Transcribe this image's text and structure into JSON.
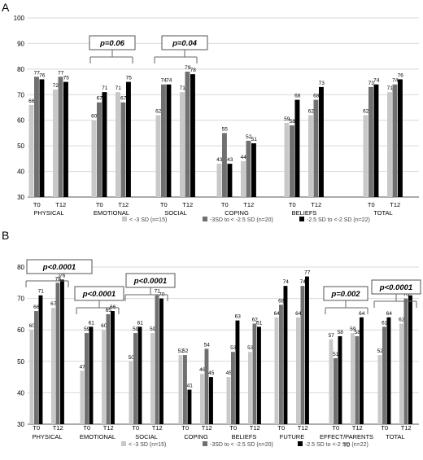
{
  "colors": {
    "series": [
      "#c8c8c8",
      "#707070",
      "#000000"
    ],
    "grid": "#d9d9d9",
    "axis": "#595959",
    "text": "#000000"
  },
  "chart_data": [
    {
      "type": "bar",
      "panel_label": "A",
      "ylim": [
        30,
        100
      ],
      "yticks": [
        30,
        40,
        50,
        60,
        70,
        80,
        90,
        100
      ],
      "grid": true,
      "legend_position": "bottom",
      "legend": [
        "< -3 SD (n=15)",
        "-3SD to < -2.5 SD (n=20)",
        "-2.5 SD to <-2 SD (n=22)"
      ],
      "categories": [
        "T0",
        "T12",
        "T0",
        "T12",
        "T0",
        "T12",
        "T0",
        "T12",
        "T0",
        "T12",
        "T0",
        "T12"
      ],
      "groups": [
        "PHYSICAL",
        "EMOTIONAL",
        "SOCIAL",
        "COPING",
        "BELIEFS",
        "TOTAL"
      ],
      "series": [
        {
          "name": "< -3 SD (n=15)",
          "values": [
            66,
            72,
            60,
            71,
            62,
            71,
            43,
            44,
            59,
            62,
            62,
            71
          ]
        },
        {
          "name": "-3SD to < -2.5 SD (n=20)",
          "values": [
            77,
            77,
            67,
            67,
            74,
            79,
            55,
            52,
            58,
            68,
            73,
            74
          ]
        },
        {
          "name": "-2.5 SD to <-2 SD (n=22)",
          "values": [
            76,
            75,
            71,
            75,
            74,
            78,
            43,
            51,
            68,
            73,
            74,
            76
          ]
        }
      ],
      "annotations": [
        {
          "text": "p=0.06",
          "groups": [
            "EMOTIONAL"
          ]
        },
        {
          "text": "p=0.04",
          "groups": [
            "SOCIAL"
          ]
        }
      ]
    },
    {
      "type": "bar",
      "panel_label": "B",
      "ylim": [
        30,
        80
      ],
      "yticks": [
        30,
        40,
        50,
        60,
        70,
        80
      ],
      "grid": true,
      "legend_position": "bottom",
      "legend": [
        "< -3 SD (n=15)",
        "-3SD to < -2.5 SD (n=20)",
        "-2.5 SD to <-2 SD (n=22)"
      ],
      "categories": [
        "T0",
        "T12",
        "T0",
        "T12",
        "T0",
        "T12",
        "T0",
        "T12",
        "T0",
        "T12",
        "T0",
        "T12",
        "T0",
        "T12",
        "T0",
        "T12"
      ],
      "groups": [
        "PHYSICAL",
        "EMOTIONAL",
        "SOCIAL",
        "COPING",
        "BELIEFS",
        "FUTURE",
        "EFFECT/PARENTS",
        "TOTAL"
      ],
      "extra_labels": [
        "T0"
      ],
      "series": [
        {
          "name": "< -3 SD (n=15)",
          "values": [
            60,
            67,
            47,
            60,
            50,
            59,
            52,
            46,
            45,
            53,
            64,
            64,
            57,
            59,
            52,
            62
          ]
        },
        {
          "name": "-3SD to < -2.5 SD (n=20)",
          "values": [
            66,
            75,
            59,
            65,
            59,
            71,
            52,
            54,
            53,
            62,
            68,
            74,
            51,
            58,
            61,
            70
          ]
        },
        {
          "name": "-2.5 SD to <-2 SD (n=22)",
          "values": [
            71,
            76,
            61,
            66,
            61,
            70,
            41,
            45,
            63,
            61,
            74,
            77,
            58,
            64,
            64,
            71
          ]
        }
      ],
      "annotations": [
        {
          "text": "p<0.0001",
          "groups": [
            "PHYSICAL"
          ]
        },
        {
          "text": "p<0.0001",
          "groups": [
            "EMOTIONAL"
          ]
        },
        {
          "text": "p<0.0001",
          "groups": [
            "SOCIAL"
          ]
        },
        {
          "text": "p=0.002",
          "groups": [
            "EFFECT/PARENTS"
          ]
        },
        {
          "text": "p<0.0001",
          "groups": [
            "TOTAL"
          ]
        }
      ]
    }
  ]
}
